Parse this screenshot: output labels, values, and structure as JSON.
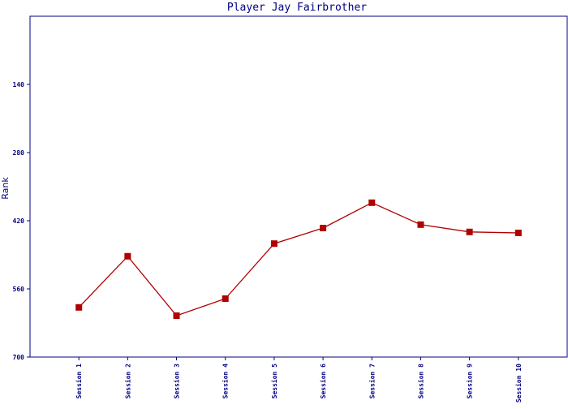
{
  "chart_data": {
    "type": "line",
    "title": "Player Jay Fairbrother",
    "y_label": "Rank",
    "categories": [
      "Session 1",
      "Session 2",
      "Session 3",
      "Session 4",
      "Session 5",
      "Session 6",
      "Session 7",
      "Session 8",
      "Session 9",
      "Session 10"
    ],
    "series": [
      {
        "name": "Rank",
        "color": "#b00000",
        "values": [
          598,
          493,
          615,
          580,
          467,
          435,
          383,
          428,
          443,
          445
        ]
      }
    ],
    "ylim": [
      700,
      0
    ],
    "yticks": [
      140,
      280,
      420,
      560,
      700
    ]
  }
}
